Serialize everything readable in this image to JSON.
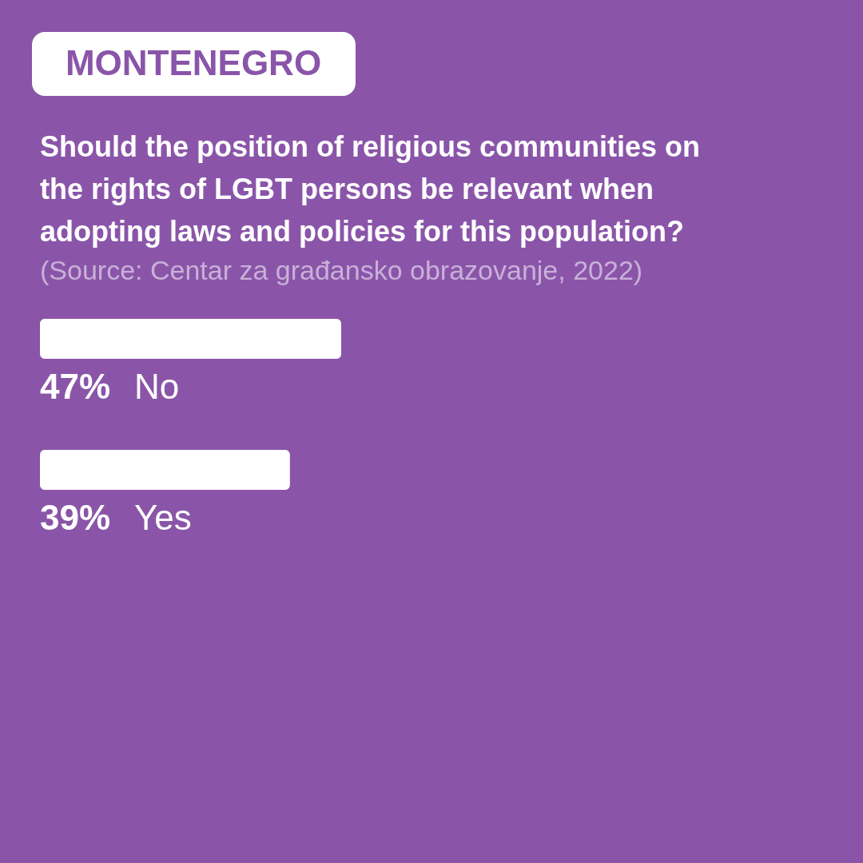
{
  "chart_data": {
    "type": "bar",
    "orientation": "horizontal",
    "title": "MONTENEGRO",
    "subtitle": "Should the position of religious communities on the rights of LGBT persons be relevant when adopting laws and policies for this population?",
    "annotations": [
      "(Source: Centar za građansko obrazovanje, 2022)"
    ],
    "categories": [
      "No",
      "Yes"
    ],
    "values": [
      47,
      39
    ],
    "value_labels": [
      "47%",
      "39%"
    ],
    "color": "#ffffff"
  }
}
